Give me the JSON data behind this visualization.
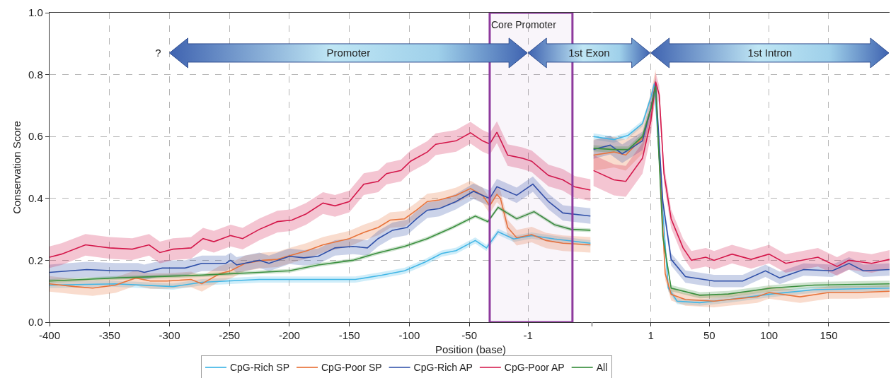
{
  "chart_data": [
    {
      "type": "line",
      "xlabel": "Position (base)",
      "ylabel": "Conservation Score",
      "xlim": [
        -400,
        52
      ],
      "xticks": [
        -400,
        -350,
        -300,
        -250,
        -200,
        -150,
        -100,
        -50,
        -1,
        {
          "value": 52,
          "label": null
        }
      ],
      "ylim": [
        0,
        1
      ],
      "yticks": [
        {
          "value": 0,
          "label": "0.0"
        },
        0.2,
        0.4,
        0.6,
        0.8,
        {
          "value": 1,
          "label": "1.0"
        }
      ],
      "grid": true,
      "legend": "bottom",
      "series": [
        {
          "name": "CpG-Rich SP",
          "color": "#41b6e6",
          "x": [
            -400,
            -345,
            -297,
            -273,
            -225,
            -176,
            -145,
            -123,
            -104,
            -87,
            -73,
            -61,
            -45,
            -35.7,
            -26,
            -13,
            2,
            21,
            51
          ],
          "values": [
            0.12,
            0.124,
            0.115,
            0.129,
            0.138,
            0.138,
            0.138,
            0.152,
            0.166,
            0.194,
            0.222,
            0.231,
            0.264,
            0.24,
            0.292,
            0.269,
            0.28,
            0.269,
            0.255
          ],
          "lower": [
            0.11,
            0.114,
            0.105,
            0.119,
            0.128,
            0.128,
            0.128,
            0.142,
            0.156,
            0.184,
            0.212,
            0.221,
            0.254,
            0.23,
            0.282,
            0.259,
            0.27,
            0.259,
            0.245
          ],
          "upper": [
            0.13,
            0.134,
            0.125,
            0.139,
            0.148,
            0.148,
            0.148,
            0.162,
            0.176,
            0.204,
            0.232,
            0.241,
            0.274,
            0.25,
            0.302,
            0.279,
            0.29,
            0.279,
            0.265
          ]
        },
        {
          "name": "CpG-Poor SP",
          "color": "#e8733a",
          "x": [
            -400,
            -379,
            -364,
            -345,
            -328,
            -316,
            -302,
            -282,
            -273,
            -258,
            -249,
            -237,
            -222,
            -210,
            -198,
            -186,
            -172,
            -150,
            -138,
            -126,
            -116,
            -104,
            -94,
            -85,
            -75,
            -61,
            -49,
            -39,
            -33,
            -27,
            -24,
            -18,
            -10.5,
            2,
            14,
            28,
            51
          ],
          "values": [
            0.124,
            0.115,
            0.11,
            0.12,
            0.143,
            0.133,
            0.133,
            0.138,
            0.124,
            0.157,
            0.166,
            0.19,
            0.2,
            0.203,
            0.217,
            0.23,
            0.25,
            0.27,
            0.29,
            0.306,
            0.33,
            0.334,
            0.362,
            0.39,
            0.395,
            0.41,
            0.432,
            0.41,
            0.376,
            0.413,
            0.4,
            0.306,
            0.273,
            0.283,
            0.264,
            0.255,
            0.25
          ],
          "lower": [
            0.099,
            0.09,
            0.085,
            0.095,
            0.118,
            0.108,
            0.108,
            0.113,
            0.099,
            0.132,
            0.141,
            0.165,
            0.175,
            0.178,
            0.192,
            0.205,
            0.225,
            0.245,
            0.265,
            0.281,
            0.305,
            0.309,
            0.337,
            0.365,
            0.37,
            0.385,
            0.407,
            0.385,
            0.351,
            0.388,
            0.375,
            0.281,
            0.248,
            0.258,
            0.239,
            0.23,
            0.225
          ],
          "upper": [
            0.149,
            0.14,
            0.135,
            0.145,
            0.168,
            0.158,
            0.158,
            0.163,
            0.149,
            0.182,
            0.191,
            0.215,
            0.225,
            0.228,
            0.242,
            0.255,
            0.275,
            0.295,
            0.315,
            0.331,
            0.355,
            0.359,
            0.387,
            0.415,
            0.42,
            0.435,
            0.457,
            0.435,
            0.401,
            0.438,
            0.425,
            0.331,
            0.298,
            0.308,
            0.289,
            0.28,
            0.275
          ]
        },
        {
          "name": "CpG-Rich AP",
          "color": "#2e4fa8",
          "x": [
            -400,
            -369,
            -345,
            -326,
            -321,
            -306,
            -287,
            -273,
            -253,
            -249,
            -244,
            -225,
            -217,
            -200,
            -188,
            -176,
            -162,
            -147,
            -135,
            -126,
            -114,
            -102,
            -94,
            -85,
            -75,
            -61,
            -46.5,
            -39,
            -33,
            -27,
            -10.5,
            3,
            16,
            28,
            51
          ],
          "values": [
            0.161,
            0.17,
            0.166,
            0.166,
            0.161,
            0.175,
            0.175,
            0.19,
            0.19,
            0.2,
            0.185,
            0.2,
            0.19,
            0.213,
            0.208,
            0.213,
            0.24,
            0.245,
            0.24,
            0.27,
            0.297,
            0.306,
            0.334,
            0.362,
            0.367,
            0.39,
            0.423,
            0.41,
            0.4,
            0.438,
            0.41,
            0.446,
            0.39,
            0.353,
            0.343
          ],
          "lower": [
            0.136,
            0.145,
            0.141,
            0.141,
            0.136,
            0.15,
            0.15,
            0.165,
            0.165,
            0.175,
            0.16,
            0.175,
            0.165,
            0.188,
            0.183,
            0.188,
            0.215,
            0.22,
            0.215,
            0.245,
            0.272,
            0.281,
            0.309,
            0.337,
            0.342,
            0.365,
            0.398,
            0.385,
            0.375,
            0.413,
            0.385,
            0.421,
            0.365,
            0.328,
            0.318
          ],
          "upper": [
            0.186,
            0.195,
            0.191,
            0.191,
            0.186,
            0.2,
            0.2,
            0.215,
            0.215,
            0.225,
            0.21,
            0.225,
            0.215,
            0.238,
            0.233,
            0.238,
            0.265,
            0.27,
            0.265,
            0.295,
            0.322,
            0.331,
            0.359,
            0.387,
            0.392,
            0.415,
            0.448,
            0.435,
            0.425,
            0.463,
            0.435,
            0.471,
            0.415,
            0.378,
            0.368
          ]
        },
        {
          "name": "CpG-Poor AP",
          "color": "#d4174a",
          "x": [
            -400,
            -390,
            -370,
            -350,
            -331,
            -317,
            -308,
            -297,
            -282,
            -272,
            -263,
            -249,
            -239,
            -225,
            -210,
            -198,
            -186,
            -172,
            -162,
            -150,
            -138,
            -126,
            -119,
            -107,
            -99,
            -85,
            -78,
            -61,
            -49,
            -39,
            -33,
            -27,
            -18,
            -6,
            2,
            16,
            28,
            38,
            51
          ],
          "values": [
            0.21,
            0.22,
            0.25,
            0.24,
            0.236,
            0.25,
            0.225,
            0.236,
            0.24,
            0.27,
            0.26,
            0.28,
            0.27,
            0.3,
            0.325,
            0.33,
            0.35,
            0.385,
            0.376,
            0.39,
            0.446,
            0.455,
            0.48,
            0.49,
            0.52,
            0.55,
            0.575,
            0.586,
            0.612,
            0.586,
            0.576,
            0.614,
            0.54,
            0.53,
            0.52,
            0.474,
            0.46,
            0.437,
            0.427
          ],
          "lower": [
            0.175,
            0.185,
            0.215,
            0.205,
            0.201,
            0.215,
            0.19,
            0.201,
            0.205,
            0.235,
            0.225,
            0.245,
            0.235,
            0.265,
            0.29,
            0.295,
            0.315,
            0.35,
            0.341,
            0.355,
            0.411,
            0.42,
            0.445,
            0.455,
            0.485,
            0.515,
            0.54,
            0.551,
            0.577,
            0.551,
            0.541,
            0.579,
            0.505,
            0.495,
            0.485,
            0.439,
            0.425,
            0.402,
            0.392
          ],
          "upper": [
            0.245,
            0.255,
            0.285,
            0.275,
            0.271,
            0.285,
            0.26,
            0.271,
            0.275,
            0.305,
            0.295,
            0.315,
            0.305,
            0.335,
            0.36,
            0.365,
            0.385,
            0.42,
            0.411,
            0.425,
            0.481,
            0.49,
            0.515,
            0.525,
            0.555,
            0.585,
            0.61,
            0.621,
            0.647,
            0.621,
            0.611,
            0.649,
            0.575,
            0.565,
            0.555,
            0.509,
            0.495,
            0.472,
            0.462
          ]
        },
        {
          "name": "All",
          "color": "#3a8f3e",
          "x": [
            -400,
            -345,
            -273,
            -225,
            -200,
            -176,
            -147,
            -128,
            -104,
            -85,
            -64,
            -45,
            -34.5,
            -26,
            -10.5,
            4,
            21,
            35,
            51
          ],
          "values": [
            0.133,
            0.143,
            0.152,
            0.161,
            0.166,
            0.185,
            0.2,
            0.222,
            0.245,
            0.27,
            0.306,
            0.343,
            0.325,
            0.371,
            0.334,
            0.357,
            0.315,
            0.3,
            0.297
          ],
          "lower": [
            0.127,
            0.137,
            0.146,
            0.155,
            0.16,
            0.179,
            0.194,
            0.216,
            0.239,
            0.264,
            0.3,
            0.337,
            0.319,
            0.365,
            0.328,
            0.351,
            0.309,
            0.294,
            0.291
          ],
          "upper": [
            0.139,
            0.149,
            0.158,
            0.167,
            0.172,
            0.191,
            0.206,
            0.228,
            0.251,
            0.276,
            0.312,
            0.349,
            0.331,
            0.377,
            0.34,
            0.363,
            0.321,
            0.306,
            0.303
          ]
        }
      ],
      "bands": [
        {
          "axis": "x",
          "from": -33,
          "to": 36,
          "label": "Core Promoter",
          "color": "#8e3a9d"
        }
      ],
      "annotations": [
        "?",
        "Promoter",
        "1st Exon",
        "1st Intron"
      ]
    },
    {
      "type": "line",
      "xlim": [
        -48,
        201
      ],
      "xticks": [
        1,
        50,
        100,
        150
      ],
      "ylim": [
        0,
        1
      ],
      "yticks": [
        0,
        0.2,
        0.4,
        0.6,
        0.8,
        1
      ],
      "grid": true,
      "tick_labels": "x",
      "series": [
        {
          "color": "#41b6e6",
          "x": [
            -47,
            -30,
            -18,
            -6,
            1,
            4,
            9.6,
            15.6,
            23,
            42,
            66,
            102,
            138,
            201
          ],
          "values": [
            0.6,
            0.59,
            0.604,
            0.642,
            0.726,
            0.772,
            0.437,
            0.11,
            0.068,
            0.063,
            0.073,
            0.091,
            0.105,
            0.11
          ],
          "lower": [
            0.59,
            0.58,
            0.594,
            0.632,
            0.716,
            0.762,
            0.427,
            0.1,
            0.058,
            0.053,
            0.063,
            0.081,
            0.095,
            0.1
          ],
          "upper": [
            0.61,
            0.6,
            0.614,
            0.652,
            0.736,
            0.782,
            0.447,
            0.12,
            0.078,
            0.073,
            0.083,
            0.101,
            0.115,
            0.12
          ]
        },
        {
          "color": "#e8733a",
          "x": [
            -47,
            -30,
            -20,
            -6,
            1,
            5,
            13,
            18,
            30,
            54,
            66,
            90,
            100,
            126,
            150,
            174,
            201
          ],
          "values": [
            0.54,
            0.55,
            0.54,
            0.595,
            0.69,
            0.768,
            0.157,
            0.09,
            0.073,
            0.068,
            0.073,
            0.082,
            0.096,
            0.082,
            0.096,
            0.096,
            0.1
          ],
          "lower": [
            0.49,
            0.5,
            0.49,
            0.545,
            0.64,
            0.718,
            0.137,
            0.07,
            0.053,
            0.048,
            0.053,
            0.062,
            0.076,
            0.062,
            0.076,
            0.076,
            0.08
          ],
          "upper": [
            0.59,
            0.6,
            0.59,
            0.645,
            0.74,
            0.818,
            0.177,
            0.11,
            0.093,
            0.088,
            0.093,
            0.102,
            0.116,
            0.102,
            0.116,
            0.116,
            0.12
          ]
        },
        {
          "color": "#2e4fa8",
          "x": [
            -47,
            -33,
            -23,
            -6,
            1,
            5,
            11,
            18,
            30,
            54,
            78,
            97,
            109,
            129,
            153,
            167,
            179,
            201
          ],
          "values": [
            0.558,
            0.572,
            0.544,
            0.586,
            0.69,
            0.768,
            0.39,
            0.203,
            0.147,
            0.133,
            0.133,
            0.166,
            0.143,
            0.17,
            0.166,
            0.19,
            0.166,
            0.17
          ],
          "lower": [
            0.528,
            0.542,
            0.514,
            0.556,
            0.66,
            0.748,
            0.37,
            0.183,
            0.127,
            0.113,
            0.113,
            0.146,
            0.123,
            0.15,
            0.146,
            0.17,
            0.146,
            0.15
          ],
          "upper": [
            0.588,
            0.602,
            0.574,
            0.616,
            0.72,
            0.788,
            0.41,
            0.223,
            0.167,
            0.153,
            0.153,
            0.186,
            0.163,
            0.19,
            0.186,
            0.21,
            0.186,
            0.19
          ]
        },
        {
          "color": "#d4174a",
          "x": [
            -47,
            -30,
            -20,
            -6,
            1,
            5,
            8,
            12,
            18,
            28,
            35,
            47,
            54,
            69,
            85,
            100,
            114,
            141,
            157,
            167,
            186,
            201
          ],
          "values": [
            0.49,
            0.46,
            0.455,
            0.53,
            0.65,
            0.777,
            0.735,
            0.48,
            0.334,
            0.24,
            0.2,
            0.21,
            0.2,
            0.22,
            0.203,
            0.22,
            0.19,
            0.21,
            0.18,
            0.2,
            0.19,
            0.203
          ],
          "lower": [
            0.44,
            0.41,
            0.405,
            0.48,
            0.6,
            0.747,
            0.705,
            0.45,
            0.304,
            0.21,
            0.17,
            0.18,
            0.17,
            0.19,
            0.173,
            0.19,
            0.16,
            0.18,
            0.15,
            0.17,
            0.16,
            0.173
          ],
          "upper": [
            0.54,
            0.51,
            0.505,
            0.58,
            0.7,
            0.807,
            0.765,
            0.51,
            0.364,
            0.27,
            0.23,
            0.24,
            0.23,
            0.25,
            0.233,
            0.25,
            0.22,
            0.24,
            0.21,
            0.23,
            0.22,
            0.233
          ]
        },
        {
          "color": "#3a8f3e",
          "x": [
            -47,
            -30,
            -18,
            -6,
            1,
            5,
            11,
            18,
            42,
            66,
            102,
            138,
            201
          ],
          "values": [
            0.562,
            0.558,
            0.558,
            0.6,
            0.69,
            0.763,
            0.278,
            0.11,
            0.087,
            0.091,
            0.11,
            0.12,
            0.124
          ],
          "lower": [
            0.552,
            0.548,
            0.548,
            0.59,
            0.68,
            0.753,
            0.268,
            0.1,
            0.077,
            0.081,
            0.1,
            0.11,
            0.114
          ],
          "upper": [
            0.572,
            0.568,
            0.568,
            0.61,
            0.7,
            0.773,
            0.288,
            0.12,
            0.097,
            0.101,
            0.12,
            0.13,
            0.134
          ]
        }
      ]
    }
  ]
}
